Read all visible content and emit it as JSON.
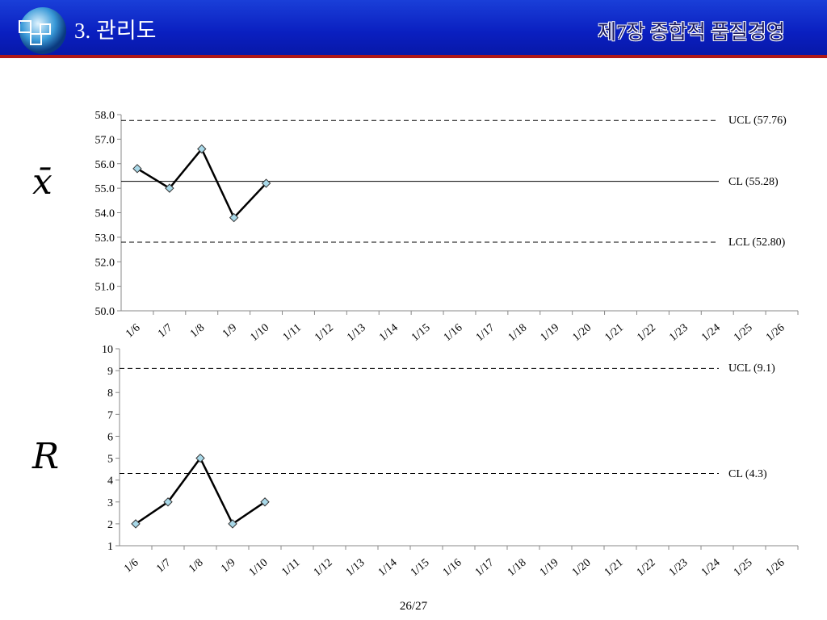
{
  "header": {
    "title": "3. 관리도",
    "chapter": "제7장 종합적 품질경영"
  },
  "page_number": "26/27",
  "chart_data": [
    {
      "type": "line",
      "axis_symbol": "x̄",
      "categories": [
        "1/6",
        "1/7",
        "1/8",
        "1/9",
        "1/10",
        "1/11",
        "1/12",
        "1/13",
        "1/14",
        "1/15",
        "1/16",
        "1/17",
        "1/18",
        "1/19",
        "1/20",
        "1/21",
        "1/22",
        "1/23",
        "1/24",
        "1/25",
        "1/26"
      ],
      "values": [
        55.8,
        55.0,
        56.6,
        53.8,
        55.2,
        null,
        null,
        null,
        null,
        null,
        null,
        null,
        null,
        null,
        null,
        null,
        null,
        null,
        null,
        null,
        null
      ],
      "color": "#000000",
      "marker_color": "#a8d8e8",
      "ylim": [
        50,
        58
      ],
      "yticks": [
        {
          "value": 50,
          "label": "50.0"
        },
        {
          "value": 51,
          "label": "51.0"
        },
        {
          "value": 52,
          "label": "52.0"
        },
        {
          "value": 53,
          "label": "53.0"
        },
        {
          "value": 54,
          "label": "54.0"
        },
        {
          "value": 55,
          "label": "55.0"
        },
        {
          "value": 56,
          "label": "56.0"
        },
        {
          "value": 57,
          "label": "57.0"
        },
        {
          "value": 58,
          "label": "58.0"
        }
      ],
      "control_lines": [
        {
          "label": "UCL (57.76)",
          "value": 57.76,
          "style": "dashed"
        },
        {
          "label": "CL (55.28)",
          "value": 55.28,
          "style": "solid"
        },
        {
          "label": "LCL (52.80)",
          "value": 52.8,
          "style": "dashed"
        }
      ]
    },
    {
      "type": "line",
      "axis_symbol": "R",
      "categories": [
        "1/6",
        "1/7",
        "1/8",
        "1/9",
        "1/10",
        "1/11",
        "1/12",
        "1/13",
        "1/14",
        "1/15",
        "1/16",
        "1/17",
        "1/18",
        "1/19",
        "1/20",
        "1/21",
        "1/22",
        "1/23",
        "1/24",
        "1/25",
        "1/26"
      ],
      "values": [
        2,
        3,
        5,
        2,
        3,
        null,
        null,
        null,
        null,
        null,
        null,
        null,
        null,
        null,
        null,
        null,
        null,
        null,
        null,
        null,
        null
      ],
      "color": "#000000",
      "marker_color": "#a8d8e8",
      "ylim": [
        1,
        10
      ],
      "yticks": [
        1,
        2,
        3,
        4,
        5,
        6,
        7,
        8,
        9,
        10
      ],
      "control_lines": [
        {
          "label": "UCL (9.1)",
          "value": 9.1,
          "style": "dashed"
        },
        {
          "label": "CL (4.3)",
          "value": 4.3,
          "style": "dashed"
        }
      ]
    }
  ]
}
